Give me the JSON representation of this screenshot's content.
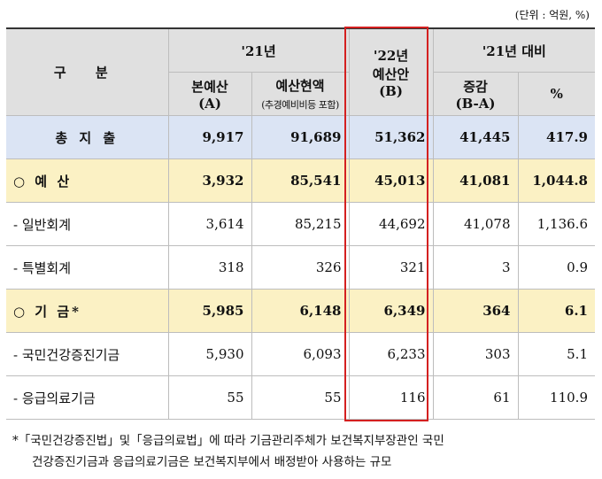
{
  "unit_note": "(단위 : 억원, %)",
  "headers": {
    "gubun": "구  분",
    "y21": "'21년",
    "main_budget": "본예산",
    "main_budget_sub": "(A)",
    "current_budget": "예산현액",
    "current_budget_sub": "(추경예비비등 포함)",
    "y22": "'22년",
    "y22_proposal": "예산안",
    "y22_sub": "(B)",
    "vs21": "'21년 대비",
    "change": "증감",
    "change_sub": "(B-A)",
    "pct": "%"
  },
  "rows": [
    {
      "label": "총 지 출",
      "a": "9,917",
      "cur": "91,689",
      "b": "51,362",
      "diff": "41,445",
      "pct": "417.9"
    },
    {
      "label": "○ 예 산",
      "a": "3,932",
      "cur": "85,541",
      "b": "45,013",
      "diff": "41,081",
      "pct": "1,044.8"
    },
    {
      "label": "- 일반회계",
      "a": "3,614",
      "cur": "85,215",
      "b": "44,692",
      "diff": "41,078",
      "pct": "1,136.6"
    },
    {
      "label": "- 특별회계",
      "a": "318",
      "cur": "326",
      "b": "321",
      "diff": "3",
      "pct": "0.9"
    },
    {
      "label": "○ 기 금*",
      "a": "5,985",
      "cur": "6,148",
      "b": "6,349",
      "diff": "364",
      "pct": "6.1"
    },
    {
      "label": "- 국민건강증진기금",
      "a": "5,930",
      "cur": "6,093",
      "b": "6,233",
      "diff": "303",
      "pct": "5.1"
    },
    {
      "label": "- 응급의료기금",
      "a": "55",
      "cur": "55",
      "b": "116",
      "diff": "61",
      "pct": "110.9"
    }
  ],
  "footnote": {
    "line1": "*「국민건강증진법」및「응급의료법」에 따라 기금관리주체가 보건복지부장관인 국민",
    "line2": "건강증진기금과 응급의료기금은 보건복지부에서 배정받아 사용하는 규모"
  }
}
